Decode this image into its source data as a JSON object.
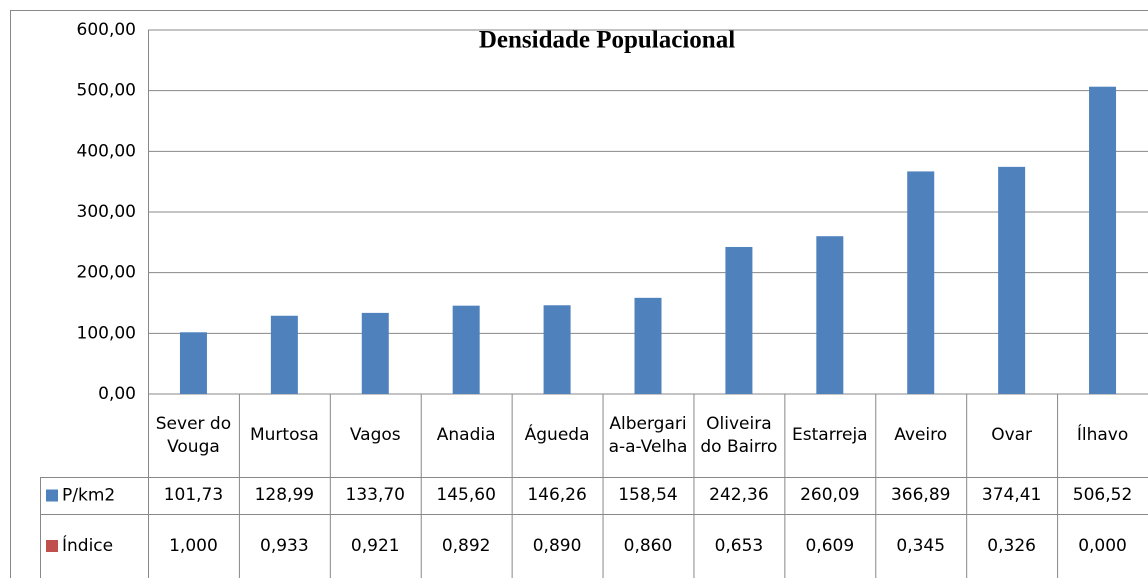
{
  "chart_data": {
    "type": "bar",
    "title": "Densidade Populacional",
    "categories": [
      "Sever do Vouga",
      "Murtosa",
      "Vagos",
      "Anadia",
      "Águeda",
      "Albergaria-a-Velha",
      "Oliveira do Bairro",
      "Estarreja",
      "Aveiro",
      "Ovar",
      "Ílhavo"
    ],
    "series": [
      {
        "name": "P/km2",
        "color": "#4f81bd",
        "values": [
          101.73,
          128.99,
          133.7,
          145.6,
          146.26,
          158.54,
          242.36,
          260.09,
          366.89,
          374.41,
          506.52
        ],
        "value_labels": [
          "101,73",
          "128,99",
          "133,70",
          "145,60",
          "146,26",
          "158,54",
          "242,36",
          "260,09",
          "366,89",
          "374,41",
          "506,52"
        ]
      },
      {
        "name": "Índice",
        "color": "#c0504d",
        "values": [
          1.0,
          0.933,
          0.921,
          0.892,
          0.89,
          0.86,
          0.653,
          0.609,
          0.345,
          0.326,
          0.0
        ],
        "value_labels": [
          "1,000",
          "0,933",
          "0,921",
          "0,892",
          "0,890",
          "0,860",
          "0,653",
          "0,609",
          "0,345",
          "0,326",
          "0,000"
        ]
      }
    ],
    "ylim": [
      0,
      600
    ],
    "yticks": [
      {
        "value": 0,
        "label": "0,00"
      },
      {
        "value": 100,
        "label": "100,00"
      },
      {
        "value": 200,
        "label": "200,00"
      },
      {
        "value": 300,
        "label": "300,00"
      },
      {
        "value": 400,
        "label": "400,00"
      },
      {
        "value": 500,
        "label": "500,00"
      },
      {
        "value": 600,
        "label": "600,00"
      }
    ],
    "grid": true
  }
}
